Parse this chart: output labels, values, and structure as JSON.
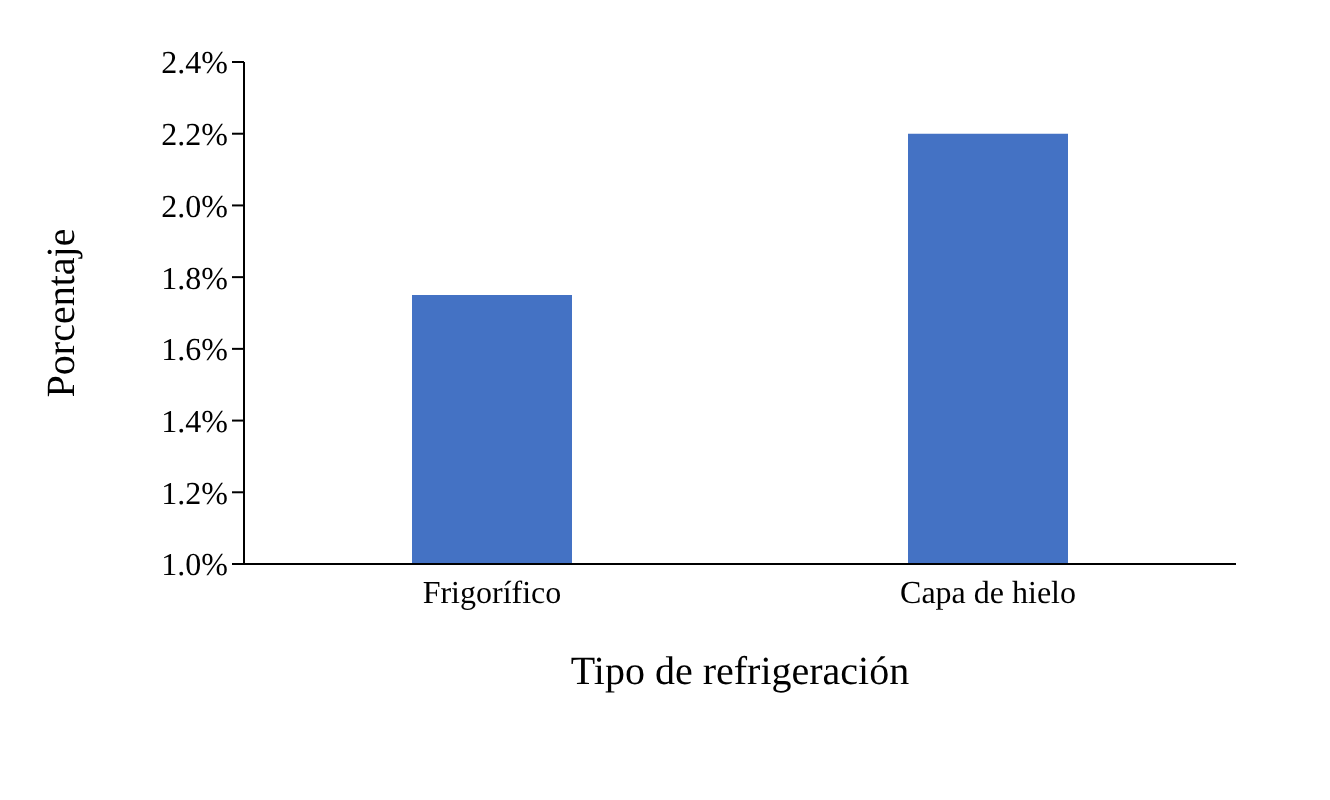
{
  "chart_data": {
    "type": "bar",
    "xlabel": "Tipo de refrigeración",
    "ylabel": "Porcentaje",
    "categories": [
      "Frigorífico",
      "Capa de hielo"
    ],
    "values": [
      1.75,
      2.2
    ],
    "color": "#4472c4",
    "ylim": [
      1.0,
      2.4
    ],
    "yticks": [
      {
        "value": 1.0,
        "label": "1.0%"
      },
      {
        "value": 1.2,
        "label": "1.2%"
      },
      {
        "value": 1.4,
        "label": "1.4%"
      },
      {
        "value": 1.6,
        "label": "1.6%"
      },
      {
        "value": 1.8,
        "label": "1.8%"
      },
      {
        "value": 2.0,
        "label": "2.0%"
      },
      {
        "value": 2.2,
        "label": "2.2%"
      },
      {
        "value": 2.4,
        "label": "2.4%"
      }
    ],
    "grid": false,
    "legend": false
  }
}
